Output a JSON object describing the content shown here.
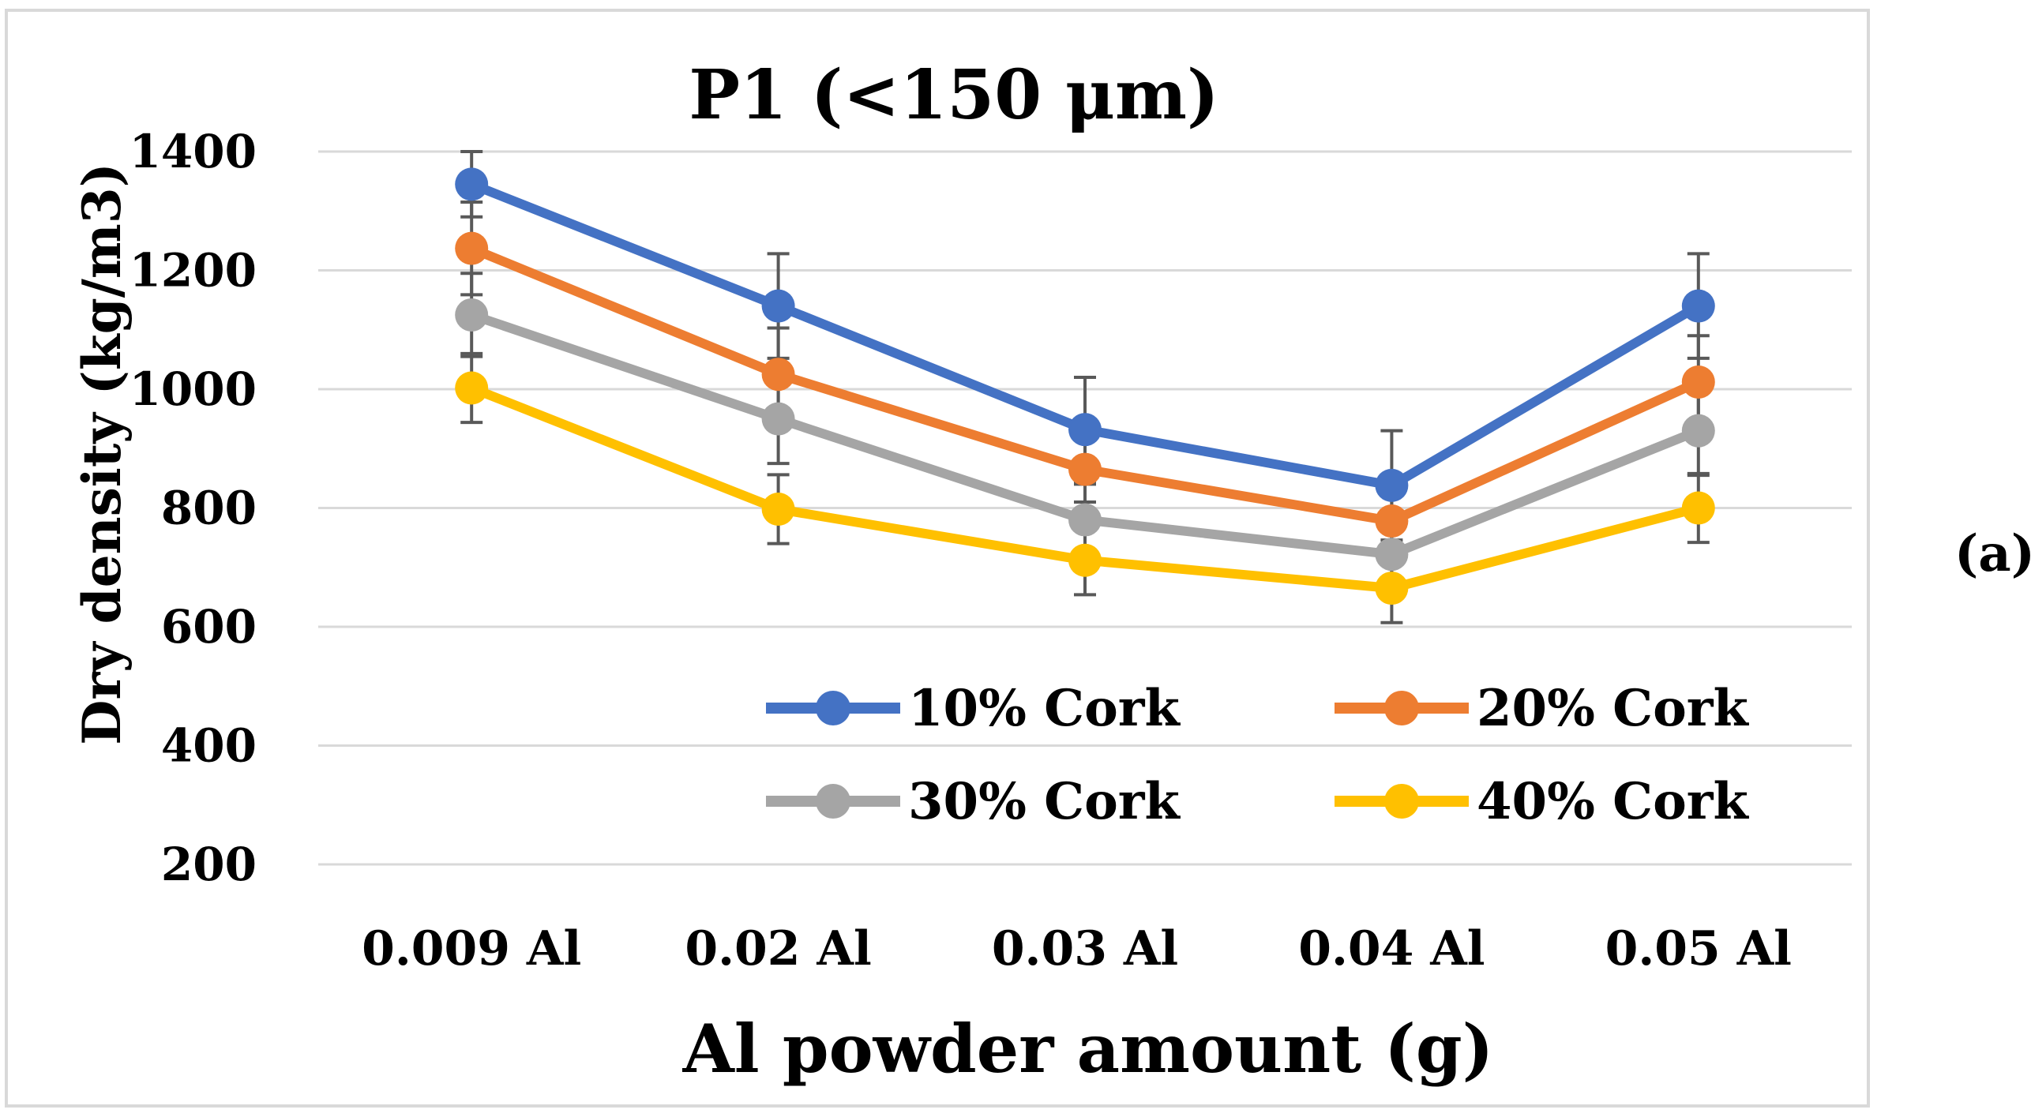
{
  "chart_data": {
    "type": "line",
    "title": "P1 (<150 μm)",
    "xlabel": "Al powder amount (g)",
    "ylabel": "Dry density (kg/m3)",
    "categories": [
      "0.009 Al",
      "0.02 Al",
      "0.03 Al",
      "0.04 Al",
      "0.05 Al"
    ],
    "ylim": [
      200,
      1400
    ],
    "yticks": [
      200,
      400,
      600,
      800,
      1000,
      1200,
      1400
    ],
    "grid": true,
    "legend_position": "bottom-right inside plot, two columns",
    "series": [
      {
        "name": "10% Cork",
        "color": "#4472C4",
        "values": [
          1345,
          1140,
          932,
          838,
          1140
        ],
        "errors": [
          55,
          88,
          88,
          92,
          88
        ]
      },
      {
        "name": "20% Cork",
        "color": "#ED7D31",
        "values": [
          1237,
          1025,
          865,
          778,
          1012
        ],
        "errors": [
          78,
          78,
          55,
          55,
          78
        ]
      },
      {
        "name": "30% Cork",
        "color": "#A5A5A5",
        "values": [
          1125,
          950,
          780,
          722,
          930
        ],
        "errors": [
          70,
          75,
          60,
          55,
          75
        ]
      },
      {
        "name": "40% Cork",
        "color": "#FFC000",
        "values": [
          1002,
          798,
          712,
          665,
          800
        ],
        "errors": [
          58,
          58,
          58,
          58,
          58
        ]
      }
    ]
  },
  "panel_label": "(a)"
}
